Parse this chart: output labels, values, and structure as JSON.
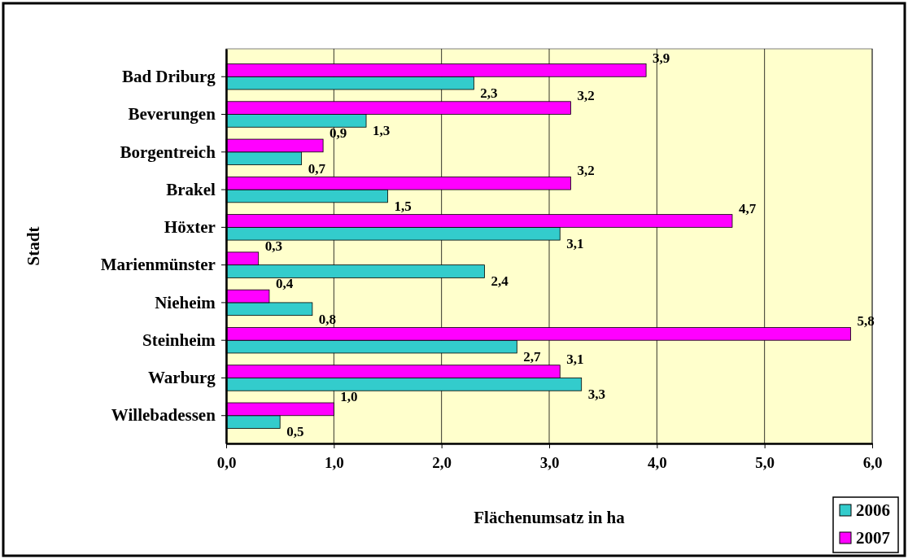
{
  "chart_data": {
    "type": "bar",
    "orientation": "horizontal",
    "xlabel": "Flächenumsatz in ha",
    "ylabel": "Stadt",
    "categories": [
      "Bad Driburg",
      "Beverungen",
      "Borgentreich",
      "Brakel",
      "Höxter",
      "Marienmünster",
      "Nieheim",
      "Steinheim",
      "Warburg",
      "Willebadessen"
    ],
    "series": [
      {
        "name": "2006",
        "color": "#33cccc",
        "values": [
          2.3,
          1.3,
          0.7,
          1.5,
          3.1,
          2.4,
          0.8,
          2.7,
          3.3,
          0.5
        ],
        "value_labels": [
          "2,3",
          "1,3",
          "0,7",
          "1,5",
          "3,1",
          "2,4",
          "0,8",
          "2,7",
          "3,3",
          "0,5"
        ]
      },
      {
        "name": "2007",
        "color": "#ff00ff",
        "values": [
          3.9,
          3.2,
          0.9,
          3.2,
          4.7,
          0.3,
          0.4,
          5.8,
          3.1,
          1.0
        ],
        "value_labels": [
          "3,9",
          "3,2",
          "0,9",
          "3,2",
          "4,7",
          "0,3",
          "0,4",
          "5,8",
          "3,1",
          "1,0"
        ]
      }
    ],
    "xlim": [
      0,
      6
    ],
    "xticks": [
      {
        "value": 0,
        "label": "0,0"
      },
      {
        "value": 1,
        "label": "1,0"
      },
      {
        "value": 2,
        "label": "2,0"
      },
      {
        "value": 3,
        "label": "3,0"
      },
      {
        "value": 4,
        "label": "4,0"
      },
      {
        "value": 5,
        "label": "5,0"
      },
      {
        "value": 6,
        "label": "6,0"
      }
    ],
    "grid": "x",
    "legend": "bottom right"
  }
}
